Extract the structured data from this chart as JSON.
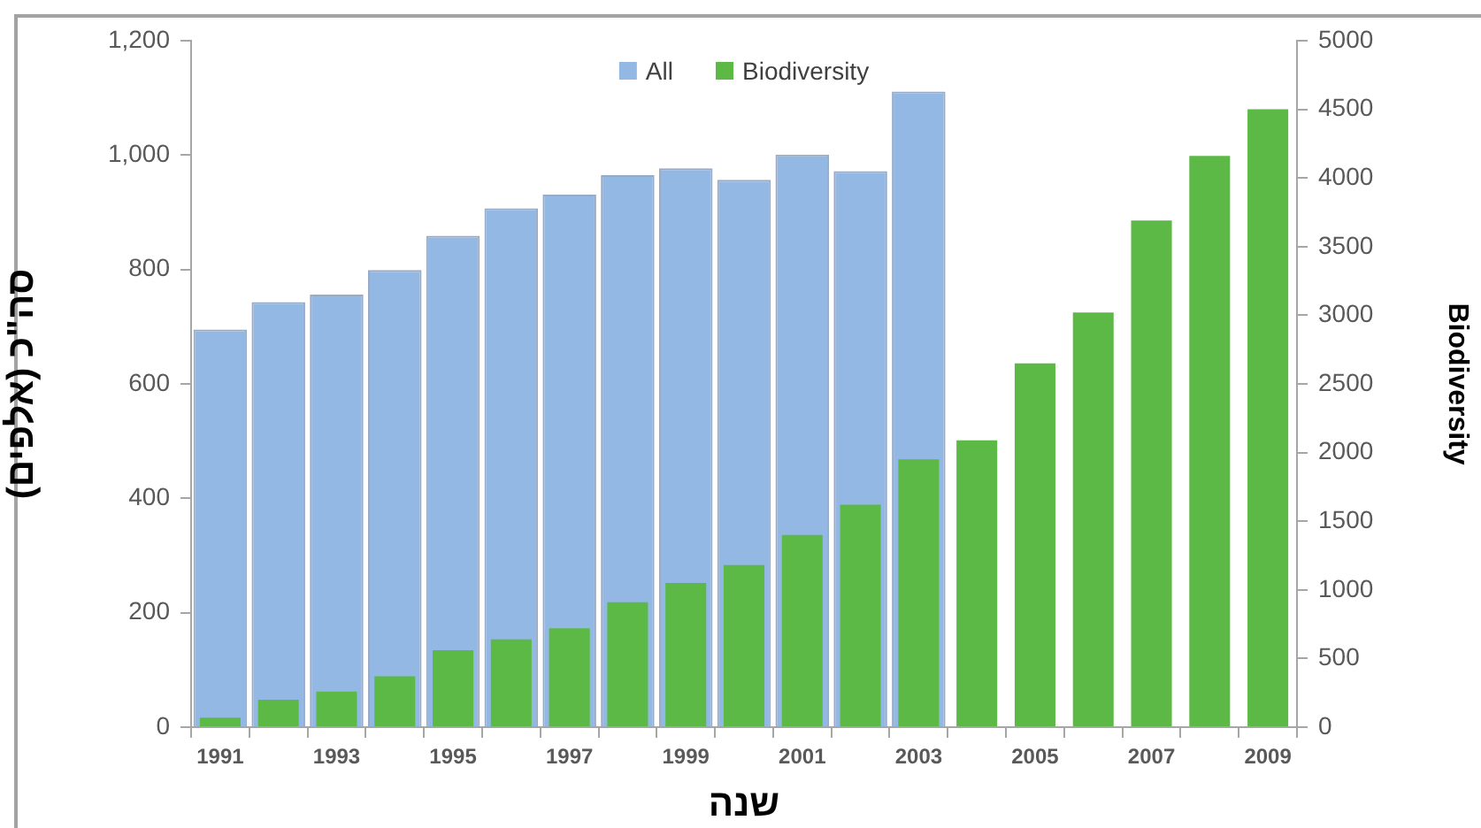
{
  "chart_data": {
    "type": "bar",
    "categories": [
      "1991",
      null,
      "1993",
      null,
      "1995",
      null,
      "1997",
      null,
      "1999",
      null,
      "2001",
      null,
      "2003",
      null,
      "2005",
      null,
      "2007",
      null,
      "2009"
    ],
    "series": [
      {
        "name": "All",
        "color": "#94b8e4",
        "values": [
          695,
          743,
          756,
          799,
          859,
          907,
          931,
          965,
          977,
          957,
          1001,
          972,
          1111,
          null,
          null,
          null,
          null,
          null,
          null
        ]
      },
      {
        "name": "Biodiversity",
        "color": "#5db946",
        "axis": "y2",
        "values": [
          70,
          200,
          260,
          370,
          560,
          640,
          720,
          910,
          1050,
          1180,
          1400,
          1620,
          1950,
          2090,
          2650,
          3020,
          3690,
          4160,
          4500
        ]
      }
    ],
    "xlabel": "שנה",
    "ylabel": "סה\"כ (אלפים)",
    "y2label": "Biodiversity",
    "ylim": [
      0,
      1200
    ],
    "yticks": [
      0,
      200,
      400,
      600,
      800,
      {
        "value": 1000,
        "label": "1,000"
      },
      {
        "value": 1200,
        "label": "1,200"
      }
    ],
    "y2lim": [
      0,
      5000
    ],
    "y2ticks": [
      0,
      500,
      1000,
      1500,
      2000,
      2500,
      3000,
      3500,
      4000,
      4500,
      5000
    ],
    "legend": "top"
  }
}
